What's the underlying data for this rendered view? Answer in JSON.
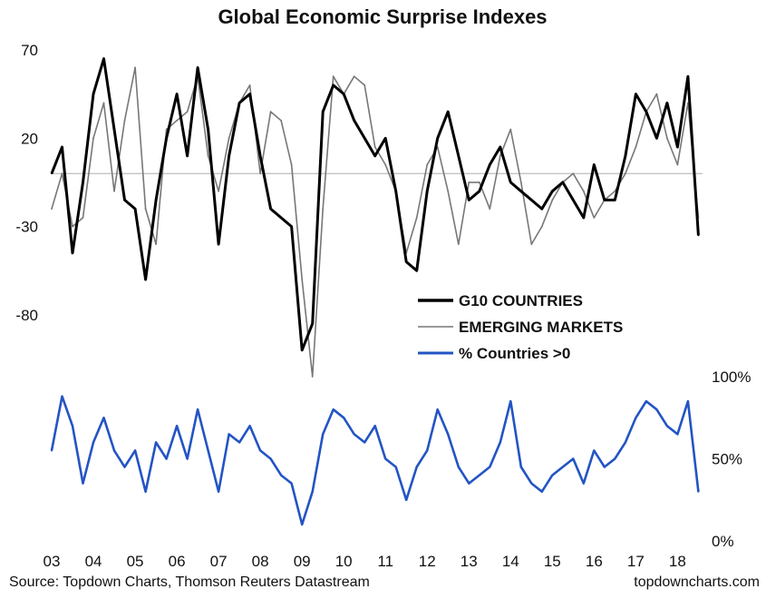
{
  "title": "Global Economic Surprise Indexes",
  "source": "Source: Topdown Charts, Thomson Reuters Datastream",
  "website": "topdowncharts.com",
  "chart_data": [
    {
      "type": "line",
      "panel": "top",
      "title": "Global Economic Surprise Indexes",
      "ylim": [
        -115,
        70
      ],
      "y_ticks": [
        {
          "value": 70,
          "label": "70"
        },
        {
          "value": 20,
          "label": "20"
        },
        {
          "value": -30,
          "label": "-30"
        },
        {
          "value": -80,
          "label": "-80"
        }
      ],
      "y_axis_side": "left",
      "zero_line": true,
      "grid": false,
      "legend_position": "lower-right",
      "x": [
        2003.0,
        2003.25,
        2003.5,
        2003.75,
        2004.0,
        2004.25,
        2004.5,
        2004.75,
        2005.0,
        2005.25,
        2005.5,
        2005.75,
        2006.0,
        2006.25,
        2006.5,
        2006.75,
        2007.0,
        2007.25,
        2007.5,
        2007.75,
        2008.0,
        2008.25,
        2008.5,
        2008.75,
        2009.0,
        2009.25,
        2009.5,
        2009.75,
        2010.0,
        2010.25,
        2010.5,
        2010.75,
        2011.0,
        2011.25,
        2011.5,
        2011.75,
        2012.0,
        2012.25,
        2012.5,
        2012.75,
        2013.0,
        2013.25,
        2013.5,
        2013.75,
        2014.0,
        2014.25,
        2014.5,
        2014.75,
        2015.0,
        2015.25,
        2015.5,
        2015.75,
        2016.0,
        2016.25,
        2016.5,
        2016.75,
        2017.0,
        2017.25,
        2017.5,
        2017.75,
        2018.0,
        2018.25,
        2018.5
      ],
      "series": [
        {
          "name": "G10 COUNTRIES",
          "color": "#000000",
          "values": [
            0,
            15,
            -45,
            -5,
            45,
            65,
            25,
            -15,
            -20,
            -60,
            -15,
            20,
            45,
            10,
            60,
            25,
            -40,
            10,
            40,
            45,
            10,
            -20,
            -25,
            -30,
            -100,
            -85,
            35,
            50,
            45,
            30,
            20,
            10,
            20,
            -10,
            -50,
            -55,
            -10,
            20,
            35,
            10,
            -15,
            -10,
            5,
            15,
            -5,
            -10,
            -15,
            -20,
            -10,
            -5,
            -15,
            -25,
            5,
            -15,
            -15,
            10,
            45,
            35,
            20,
            40,
            15,
            55,
            -35
          ]
        },
        {
          "name": "EMERGING MARKETS",
          "color": "#777777",
          "values": [
            -20,
            0,
            -30,
            -25,
            20,
            40,
            -10,
            30,
            60,
            -20,
            -40,
            25,
            30,
            35,
            55,
            10,
            -10,
            20,
            40,
            50,
            0,
            35,
            30,
            5,
            -60,
            -115,
            -20,
            55,
            45,
            55,
            50,
            15,
            5,
            -10,
            -45,
            -25,
            5,
            15,
            -10,
            -40,
            -5,
            -5,
            -20,
            10,
            25,
            -5,
            -40,
            -30,
            -15,
            -5,
            0,
            -10,
            -25,
            -15,
            -10,
            0,
            15,
            35,
            45,
            20,
            5,
            40,
            -25
          ]
        }
      ]
    },
    {
      "type": "line",
      "panel": "bottom",
      "ylim": [
        0,
        100
      ],
      "y_ticks": [
        {
          "value": 100,
          "label": "100%"
        },
        {
          "value": 50,
          "label": "50%"
        },
        {
          "value": 0,
          "label": "0%"
        }
      ],
      "y_axis_side": "right",
      "grid": false,
      "x_ticks": [
        "03",
        "04",
        "05",
        "06",
        "07",
        "08",
        "09",
        "10",
        "11",
        "12",
        "13",
        "14",
        "15",
        "16",
        "17",
        "18"
      ],
      "x": [
        2003.0,
        2003.25,
        2003.5,
        2003.75,
        2004.0,
        2004.25,
        2004.5,
        2004.75,
        2005.0,
        2005.25,
        2005.5,
        2005.75,
        2006.0,
        2006.25,
        2006.5,
        2006.75,
        2007.0,
        2007.25,
        2007.5,
        2007.75,
        2008.0,
        2008.25,
        2008.5,
        2008.75,
        2009.0,
        2009.25,
        2009.5,
        2009.75,
        2010.0,
        2010.25,
        2010.5,
        2010.75,
        2011.0,
        2011.25,
        2011.5,
        2011.75,
        2012.0,
        2012.25,
        2012.5,
        2012.75,
        2013.0,
        2013.25,
        2013.5,
        2013.75,
        2014.0,
        2014.25,
        2014.5,
        2014.75,
        2015.0,
        2015.25,
        2015.5,
        2015.75,
        2016.0,
        2016.25,
        2016.5,
        2016.75,
        2017.0,
        2017.25,
        2017.5,
        2017.75,
        2018.0,
        2018.25,
        2018.5
      ],
      "series": [
        {
          "name": "% Countries >0",
          "color": "#2354c4",
          "values": [
            55,
            88,
            70,
            35,
            60,
            75,
            55,
            45,
            55,
            30,
            60,
            50,
            70,
            50,
            80,
            55,
            30,
            65,
            60,
            70,
            55,
            50,
            40,
            35,
            10,
            30,
            65,
            80,
            75,
            65,
            60,
            70,
            50,
            45,
            25,
            45,
            55,
            80,
            65,
            45,
            35,
            40,
            45,
            60,
            85,
            45,
            35,
            30,
            40,
            45,
            50,
            35,
            55,
            45,
            50,
            60,
            75,
            85,
            80,
            70,
            65,
            85,
            30
          ]
        }
      ]
    }
  ]
}
